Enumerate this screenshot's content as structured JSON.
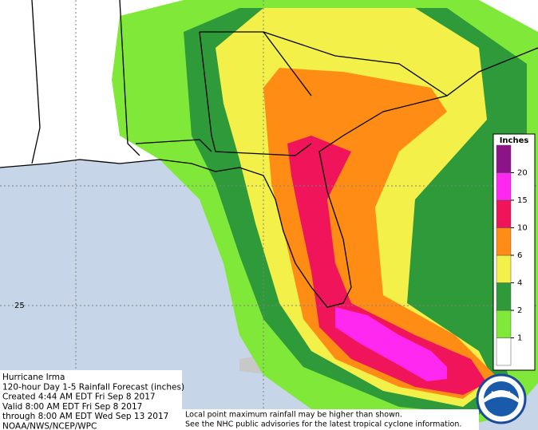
{
  "map": {
    "latitude_label": "25",
    "legend": {
      "title": "Inches",
      "ticks": [
        1,
        2,
        4,
        6,
        10,
        15,
        20
      ],
      "colors": [
        "#ffffff",
        "#80e838",
        "#2e9a3a",
        "#f4f04a",
        "#ff8c14",
        "#f0145a",
        "#ff28f0",
        "#8c1488"
      ]
    },
    "info": [
      "Hurricane Irma",
      "120-hour Day 1-5 Rainfall Forecast (inches)",
      "Created 4:44 AM EDT Fri Sep 8 2017",
      "Valid 8:00 AM EDT Fri Sep 8 2017",
      "through 8:00 AM EDT Wed Sep 13 2017",
      "NOAA/NWS/NCEP/WPC"
    ],
    "disclaimer": [
      "Local point maximum rainfall may be higher than shown.",
      "See the NHC public advisories for the latest tropical cyclone information."
    ],
    "logo": "NOAA"
  }
}
